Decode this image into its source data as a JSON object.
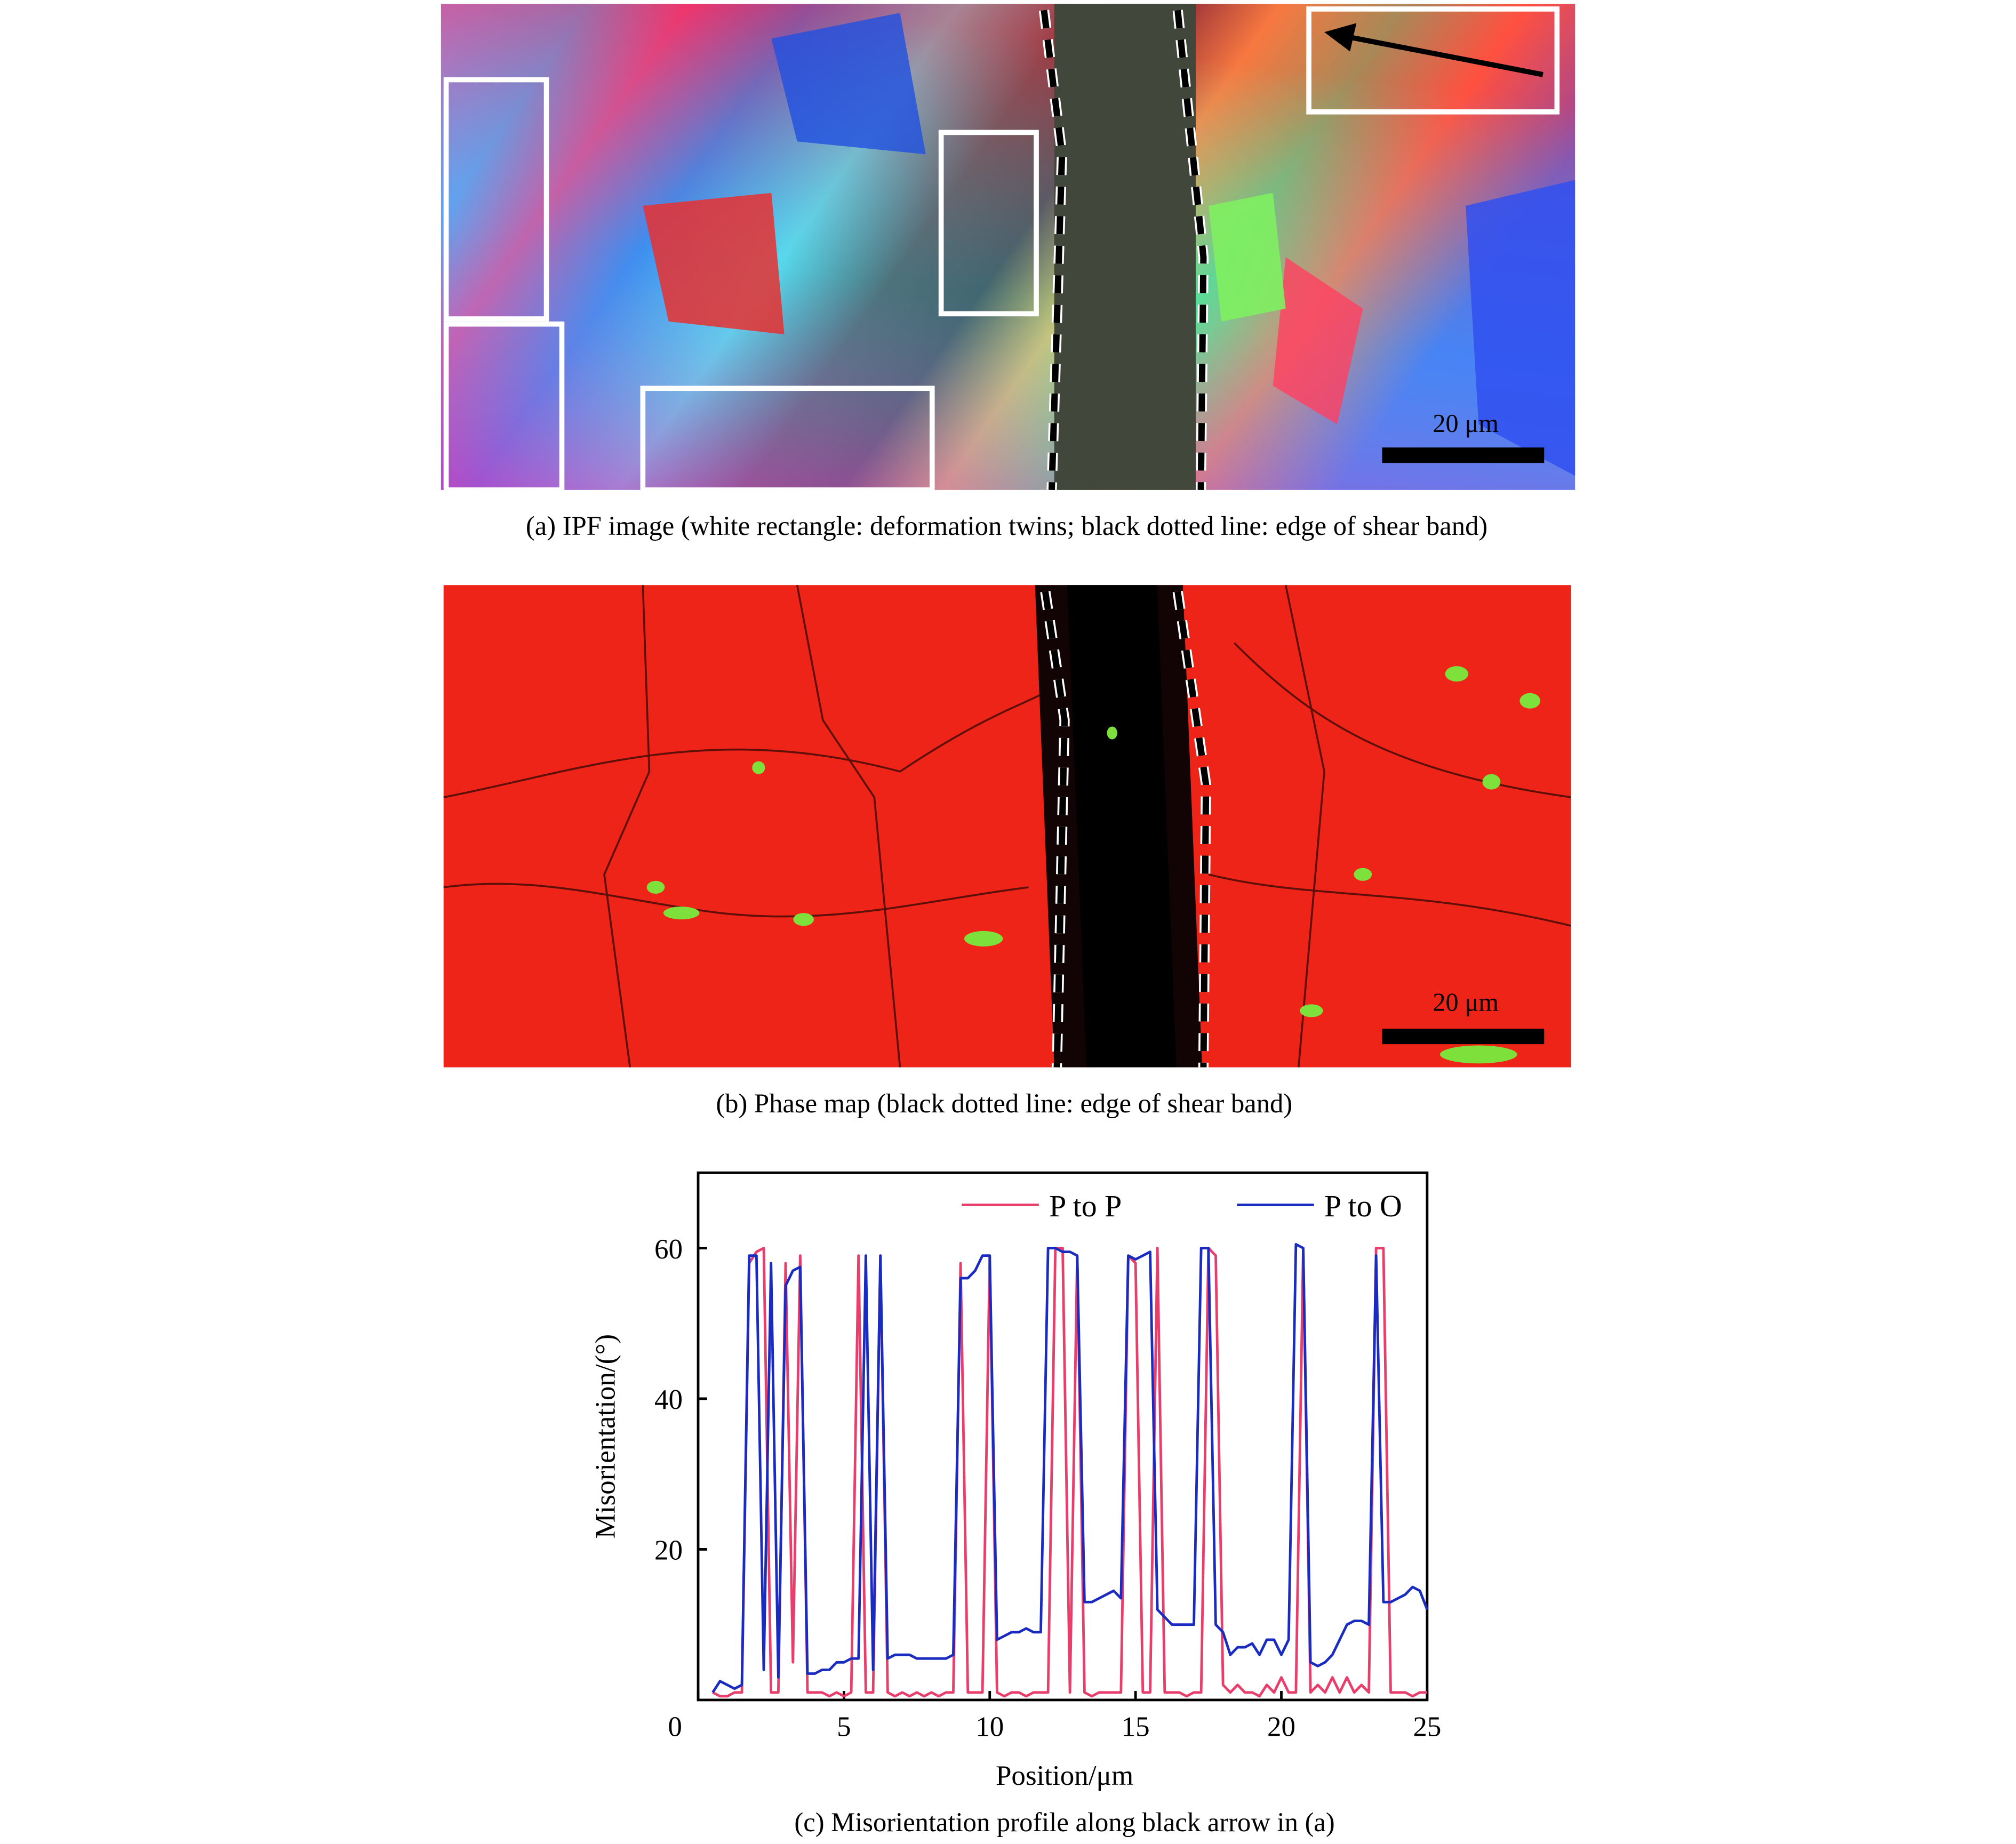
{
  "panel_a": {
    "caption": "(a) IPF image (white rectangle: deformation twins; black dotted line: edge of shear band)",
    "scale_label": "20 μm"
  },
  "panel_b": {
    "caption": "(b) Phase map (black dotted line: edge of shear band)",
    "scale_label": "20 μm"
  },
  "chart_data": {
    "type": "line",
    "caption": "(c) Misorientation profile along black arrow in (a)",
    "xlabel": "Position/μm",
    "ylabel": "Misorientation/(°)",
    "xlim": [
      0,
      25
    ],
    "ylim": [
      0,
      70
    ],
    "xticks": [
      0,
      5,
      10,
      15,
      20,
      25
    ],
    "yticks": [
      20,
      40,
      60
    ],
    "legend": "top",
    "x": [
      0.5,
      0.75,
      1,
      1.25,
      1.5,
      1.75,
      2,
      2.25,
      2.5,
      2.75,
      3,
      3.25,
      3.5,
      3.75,
      4,
      4.25,
      4.5,
      4.75,
      5,
      5.25,
      5.5,
      5.75,
      6,
      6.25,
      6.5,
      6.75,
      7,
      7.25,
      7.5,
      7.75,
      8,
      8.25,
      8.5,
      8.75,
      9,
      9.25,
      9.5,
      9.75,
      10,
      10.25,
      10.5,
      10.75,
      11,
      11.25,
      11.5,
      11.75,
      12,
      12.25,
      12.5,
      12.75,
      13,
      13.25,
      13.5,
      13.75,
      14,
      14.25,
      14.5,
      14.75,
      15,
      15.25,
      15.5,
      15.75,
      16,
      16.25,
      16.5,
      16.75,
      17,
      17.25,
      17.5,
      17.75,
      18,
      18.25,
      18.5,
      18.75,
      19,
      19.25,
      19.5,
      19.75,
      20,
      20.25,
      20.5,
      20.75,
      21,
      21.25,
      21.5,
      21.75,
      22,
      22.25,
      22.5,
      22.75,
      23,
      23.25,
      23.5,
      23.75,
      24,
      24.25,
      24.5,
      24.75,
      25
    ],
    "series": [
      {
        "name": "P to P",
        "color": "#e83e6c",
        "values": [
          1,
          0.5,
          0.5,
          1,
          1,
          58,
          59.5,
          60,
          1,
          1,
          58,
          5,
          59,
          1,
          1,
          1,
          0.5,
          1,
          0.5,
          1,
          59,
          1,
          1,
          59,
          1,
          0.5,
          1,
          0.5,
          1,
          0.5,
          1,
          0.5,
          1,
          1,
          58,
          1,
          1,
          1,
          59,
          1,
          0.5,
          1,
          1,
          0.5,
          1,
          1,
          1,
          60,
          60,
          1,
          59,
          1,
          0.5,
          1,
          1,
          1,
          1,
          59,
          58,
          1,
          1,
          60,
          1,
          1,
          1,
          0.5,
          1,
          1,
          60,
          59,
          2,
          1,
          2,
          1,
          1,
          0.5,
          2,
          1,
          3,
          1,
          1,
          60,
          1,
          2,
          1,
          3,
          1,
          3,
          1,
          2,
          1,
          60,
          60,
          1,
          1,
          1,
          0.5,
          1,
          1
        ]
      },
      {
        "name": "P to O",
        "color": "#1a2cc0",
        "values": [
          1,
          2.5,
          2,
          1.5,
          2,
          59,
          59,
          4,
          58,
          3,
          55,
          57,
          57.5,
          3.5,
          3.5,
          4,
          4,
          5,
          5,
          5.5,
          5.5,
          59,
          4,
          59,
          5.5,
          6,
          6,
          6,
          5.5,
          5.5,
          5.5,
          5.5,
          5.5,
          6,
          56,
          56,
          57,
          59,
          59,
          8,
          8.5,
          9,
          9,
          9.5,
          9,
          9,
          60,
          60,
          59.5,
          59.5,
          59,
          13,
          13,
          13.5,
          14,
          14.5,
          13.5,
          59,
          58.5,
          59,
          59.5,
          12,
          11,
          10,
          10,
          10,
          10,
          60,
          60,
          10,
          9,
          6,
          7,
          7,
          7.5,
          6,
          8,
          8,
          6,
          8,
          60.5,
          60,
          5,
          4.5,
          5,
          6,
          8,
          10,
          10.5,
          10.5,
          10,
          59,
          13,
          13,
          13.5,
          14,
          15,
          14.5,
          12
        ]
      }
    ]
  }
}
